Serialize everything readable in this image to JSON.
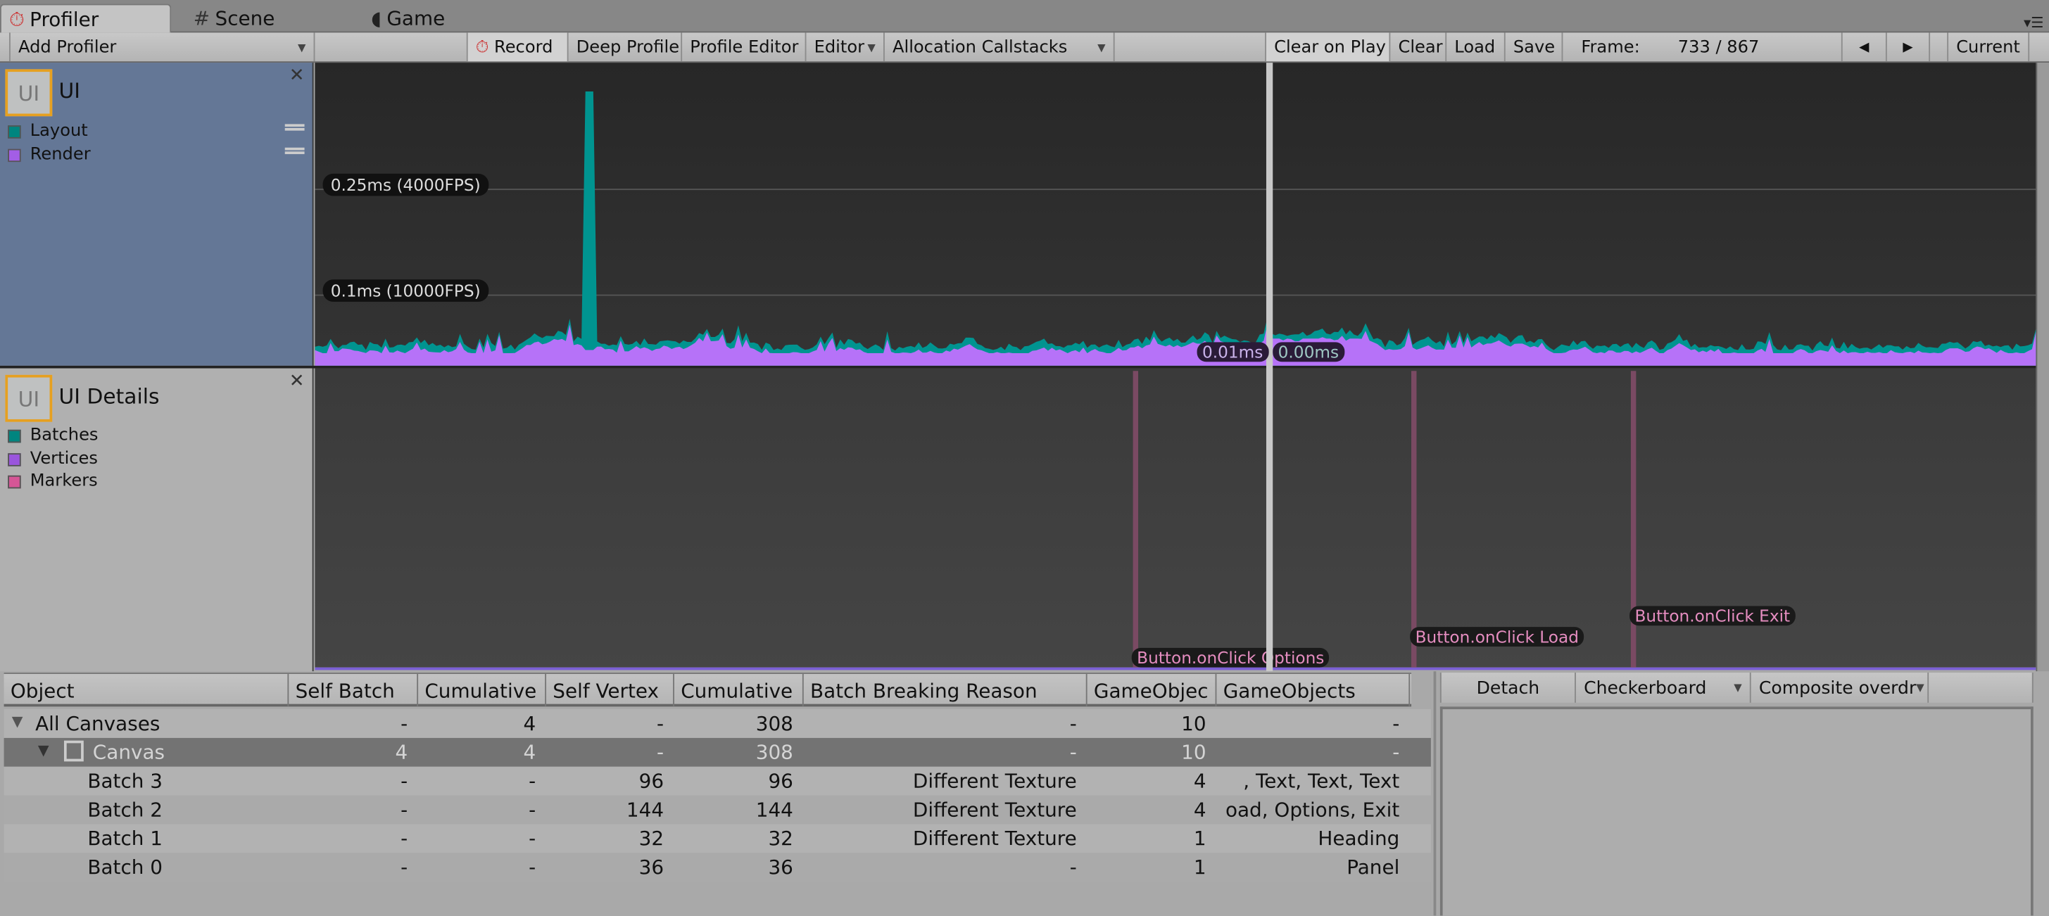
{
  "tabs": [
    {
      "label": "Profiler",
      "icon": "stopwatch-icon"
    },
    {
      "label": "Scene",
      "icon": "grid-icon"
    },
    {
      "label": "Game",
      "icon": "pacman-icon"
    }
  ],
  "toolbar": {
    "add_profiler": "Add Profiler",
    "record": "Record",
    "deep_profile": "Deep Profile",
    "profile_editor": "Profile Editor",
    "target": "Editor",
    "allocation_callstacks": "Allocation Callstacks",
    "clear_on_play": "Clear on Play",
    "clear": "Clear",
    "load": "Load",
    "save": "Save",
    "frame_label": "Frame:",
    "frame_value": "733 / 867",
    "current": "Current"
  },
  "modules": [
    {
      "title": "UI",
      "badge": "UI",
      "legend": [
        {
          "label": "Layout",
          "color": "#00948f"
        },
        {
          "label": "Render",
          "color": "#b36ff5"
        }
      ]
    },
    {
      "title": "UI Details",
      "badge": "UI",
      "legend": [
        {
          "label": "Batches",
          "color": "#00857f"
        },
        {
          "label": "Vertices",
          "color": "#9a55dd"
        },
        {
          "label": "Markers",
          "color": "#d65596"
        }
      ]
    }
  ],
  "chart": {
    "grid_labels": [
      "0.25ms (4000FPS)",
      "0.1ms (10000FPS)"
    ],
    "selected_values": [
      "0.01ms",
      "0.00ms"
    ],
    "markers": [
      "Button.onClick Options",
      "Button.onClick Load",
      "Button.onClick Exit"
    ]
  },
  "table": {
    "columns": [
      "Object",
      "Self Batch",
      "Cumulative",
      "Self Vertex",
      "Cumulative",
      "Batch Breaking Reason",
      "GameObjec",
      "GameObjects"
    ],
    "rows": [
      [
        "All Canvases",
        "-",
        "4",
        "-",
        "308",
        "-",
        "10",
        "-"
      ],
      [
        "Canvas",
        "4",
        "4",
        "-",
        "308",
        "-",
        "10",
        "-"
      ],
      [
        "Batch 3",
        "-",
        "-",
        "96",
        "96",
        "Different Texture",
        "4",
        ", Text, Text, Text"
      ],
      [
        "Batch 2",
        "-",
        "-",
        "144",
        "144",
        "Different Texture",
        "4",
        "oad, Options, Exit"
      ],
      [
        "Batch 1",
        "-",
        "-",
        "32",
        "32",
        "Different Texture",
        "1",
        "Heading"
      ],
      [
        "Batch 0",
        "-",
        "-",
        "36",
        "36",
        "-",
        "1",
        "Panel"
      ]
    ]
  },
  "preview": {
    "detach": "Detach",
    "background": "Checkerboard",
    "mode": "Composite overdr"
  }
}
